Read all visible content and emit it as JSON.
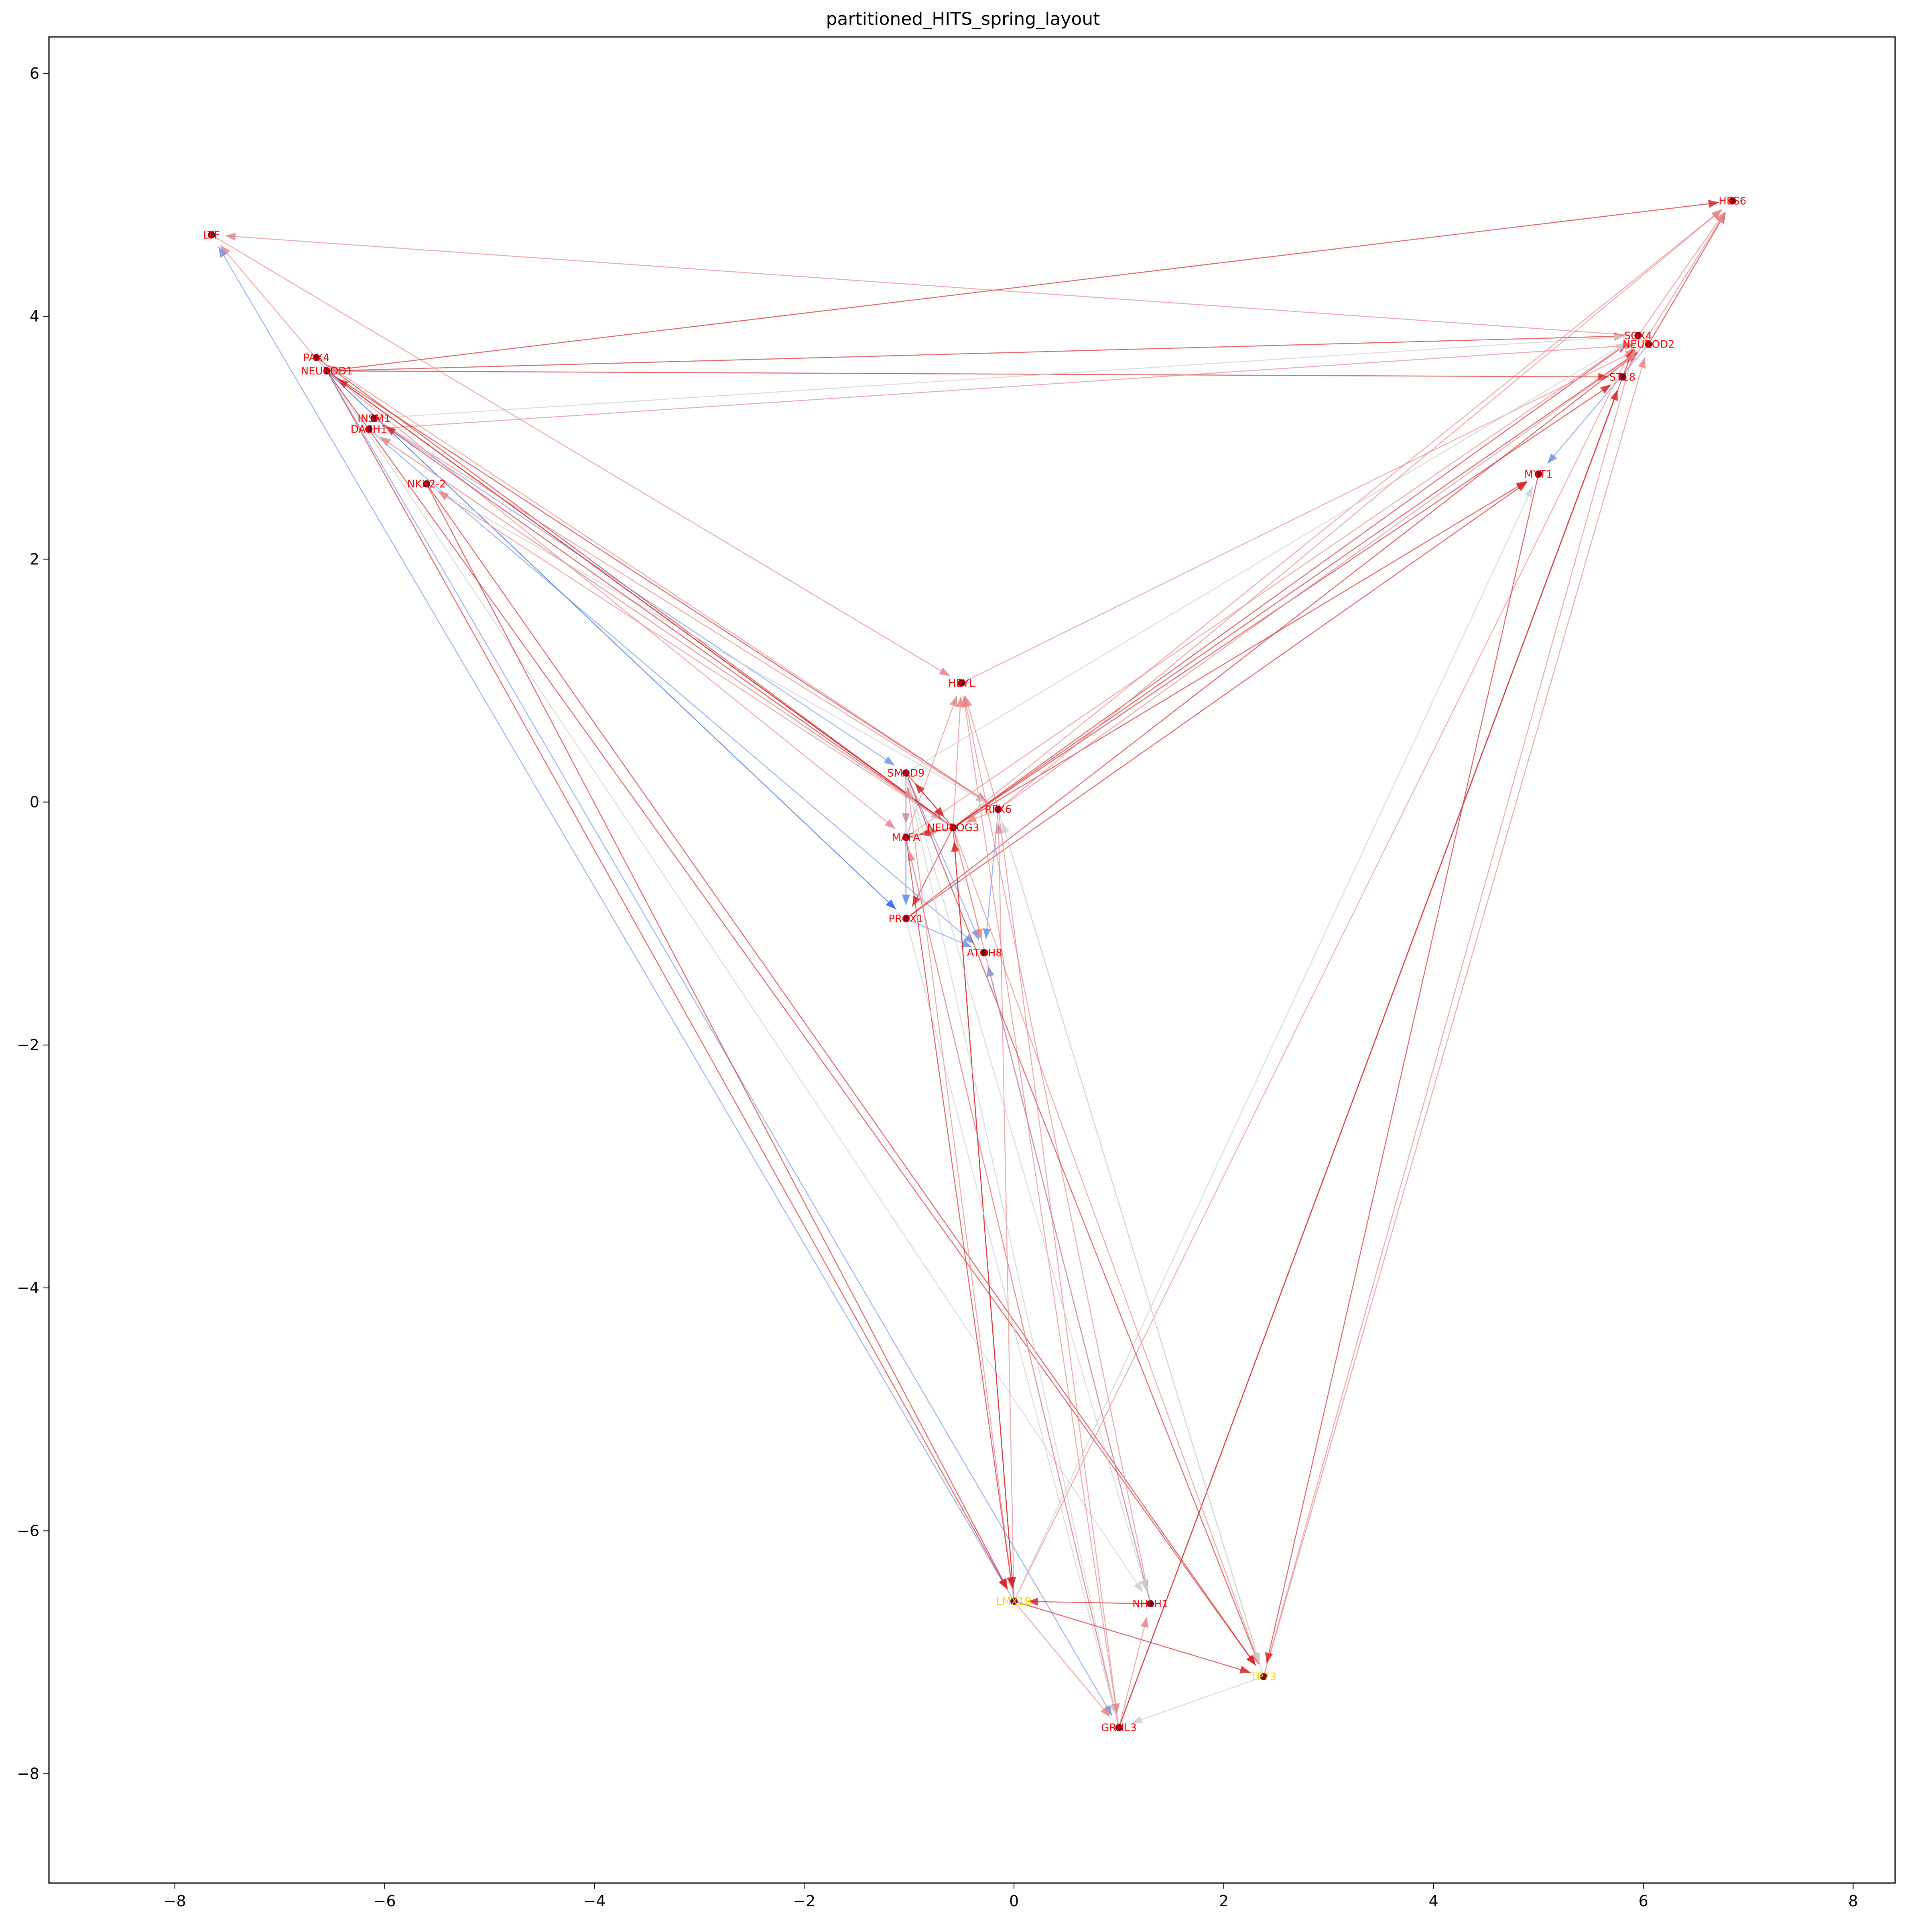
{
  "chart_data": {
    "type": "network",
    "title": "partitioned_HITS_spring_layout",
    "xlim": [
      -9.2,
      8.4
    ],
    "ylim": [
      -8.9,
      6.3
    ],
    "xticks": [
      -8,
      -6,
      -4,
      -2,
      0,
      2,
      4,
      6,
      8
    ],
    "yticks": [
      -8,
      -6,
      -4,
      -2,
      0,
      2,
      4,
      6
    ],
    "xtick_labels": [
      "−8",
      "−6",
      "−4",
      "−2",
      "0",
      "2",
      "4",
      "6",
      "8"
    ],
    "ytick_labels": [
      "−8",
      "−6",
      "−4",
      "−2",
      "0",
      "2",
      "4",
      "6"
    ],
    "grid": false,
    "colors": {
      "label": "#ff0000",
      "label_yellow": "#ffd700",
      "edge_red": "#d62728",
      "edge_pink": "#e8868a",
      "edge_grey": "#cfcfcf",
      "edge_blue": "#6f95e8",
      "edge_darkblue": "#2b66e0",
      "node_dark": "#7a0022"
    },
    "nodes": [
      {
        "id": "LTF",
        "x": -7.65,
        "y": 4.67,
        "label_color": "red"
      },
      {
        "id": "HES6",
        "x": 6.85,
        "y": 4.95,
        "label_color": "red"
      },
      {
        "id": "PAX4",
        "x": -6.65,
        "y": 3.66,
        "label_color": "red"
      },
      {
        "id": "NEUROD1",
        "x": -6.55,
        "y": 3.55,
        "label_color": "red"
      },
      {
        "id": "INSM1",
        "x": -6.1,
        "y": 3.16,
        "label_color": "red"
      },
      {
        "id": "DACH1",
        "x": -6.15,
        "y": 3.07,
        "label_color": "red"
      },
      {
        "id": "NKX2-2",
        "x": -5.6,
        "y": 2.62,
        "label_color": "red"
      },
      {
        "id": "SOX4",
        "x": 5.95,
        "y": 3.84,
        "label_color": "red"
      },
      {
        "id": "NEUROD2",
        "x": 6.05,
        "y": 3.77,
        "label_color": "red"
      },
      {
        "id": "ST18",
        "x": 5.8,
        "y": 3.5,
        "label_color": "red"
      },
      {
        "id": "MYT1",
        "x": 5.0,
        "y": 2.7,
        "label_color": "red"
      },
      {
        "id": "HEYL",
        "x": -0.5,
        "y": 0.98,
        "label_color": "red"
      },
      {
        "id": "SMAD9",
        "x": -1.03,
        "y": 0.24,
        "label_color": "red"
      },
      {
        "id": "RFX6",
        "x": -0.15,
        "y": -0.06,
        "label_color": "red"
      },
      {
        "id": "NEUROG3",
        "x": -0.58,
        "y": -0.21,
        "label_color": "red"
      },
      {
        "id": "MAFA",
        "x": -1.03,
        "y": -0.29,
        "label_color": "red"
      },
      {
        "id": "PROX1",
        "x": -1.03,
        "y": -0.96,
        "label_color": "red"
      },
      {
        "id": "ATOH8",
        "x": -0.28,
        "y": -1.24,
        "label_color": "red"
      },
      {
        "id": "LMX1B",
        "x": 0.0,
        "y": -6.58,
        "label_color": "yellow"
      },
      {
        "id": "NHLH1",
        "x": 1.3,
        "y": -6.6,
        "label_color": "red"
      },
      {
        "id": "TP73",
        "x": 2.38,
        "y": -7.2,
        "label_color": "yellow"
      },
      {
        "id": "GRHL3",
        "x": 1.0,
        "y": -7.62,
        "label_color": "red"
      }
    ],
    "edges": [
      {
        "source": "NEUROD1",
        "target": "HES6",
        "color": "red"
      },
      {
        "source": "NEUROD1",
        "target": "SOX4",
        "color": "red"
      },
      {
        "source": "NEUROD1",
        "target": "ST18",
        "color": "red"
      },
      {
        "source": "DACH1",
        "target": "NEUROD2",
        "color": "pink"
      },
      {
        "source": "INSM1",
        "target": "SOX4",
        "color": "grey"
      },
      {
        "source": "SOX4",
        "target": "LTF",
        "color": "pink"
      },
      {
        "source": "NEUROD1",
        "target": "LTF",
        "color": "pink"
      },
      {
        "source": "LMX1B",
        "target": "LTF",
        "color": "blue"
      },
      {
        "source": "NEUROD1",
        "target": "PROX1",
        "color": "darkblue"
      },
      {
        "source": "NEUROD1",
        "target": "RFX6",
        "color": "red"
      },
      {
        "source": "NEUROD1",
        "target": "NEUROG3",
        "color": "red"
      },
      {
        "source": "NEUROD1",
        "target": "MAFA",
        "color": "pink"
      },
      {
        "source": "PAX4",
        "target": "NEUROG3",
        "color": "red"
      },
      {
        "source": "INSM1",
        "target": "RFX6",
        "color": "pink"
      },
      {
        "source": "INSM1",
        "target": "SMAD9",
        "color": "blue"
      },
      {
        "source": "DACH1",
        "target": "ATOH8",
        "color": "blue"
      },
      {
        "source": "DACH1",
        "target": "NEUROG3",
        "color": "grey"
      },
      {
        "source": "NKX2-2",
        "target": "RFX6",
        "color": "grey"
      },
      {
        "source": "LTF",
        "target": "HEYL",
        "color": "pink"
      },
      {
        "source": "NEUROD1",
        "target": "NHLH1",
        "color": "grey"
      },
      {
        "source": "NEUROD1",
        "target": "TP73",
        "color": "red"
      },
      {
        "source": "NEUROD1",
        "target": "LMX1B",
        "color": "red"
      },
      {
        "source": "NEUROD1",
        "target": "GRHL3",
        "color": "blue"
      },
      {
        "source": "NKX2-2",
        "target": "TP73",
        "color": "red"
      },
      {
        "source": "NKX2-2",
        "target": "LMX1B",
        "color": "red"
      },
      {
        "source": "NEUROG3",
        "target": "NEUROD1",
        "color": "red"
      },
      {
        "source": "NEUROG3",
        "target": "INSM1",
        "color": "red"
      },
      {
        "source": "NEUROG3",
        "target": "NKX2-2",
        "color": "pink"
      },
      {
        "source": "NEUROG3",
        "target": "DACH1",
        "color": "pink"
      },
      {
        "source": "RFX6",
        "target": "PAX4",
        "color": "pink"
      },
      {
        "source": "NEUROG3",
        "target": "HES6",
        "color": "pink"
      },
      {
        "source": "NEUROG3",
        "target": "SOX4",
        "color": "red"
      },
      {
        "source": "NEUROG3",
        "target": "NEUROD2",
        "color": "red"
      },
      {
        "source": "NEUROG3",
        "target": "ST18",
        "color": "red"
      },
      {
        "source": "NEUROG3",
        "target": "MYT1",
        "color": "red"
      },
      {
        "source": "RFX6",
        "target": "NEUROD2",
        "color": "pink"
      },
      {
        "source": "RFX6",
        "target": "HES6",
        "color": "pink"
      },
      {
        "source": "PROX1",
        "target": "NEUROD2",
        "color": "red"
      },
      {
        "source": "PROX1",
        "target": "MYT1",
        "color": "red"
      },
      {
        "source": "MAFA",
        "target": "SOX4",
        "color": "pink"
      },
      {
        "source": "HEYL",
        "target": "NEUROD2",
        "color": "pink"
      },
      {
        "source": "SMAD9",
        "target": "SOX4",
        "color": "grey"
      },
      {
        "source": "NEUROD2",
        "target": "HES6",
        "color": "red"
      },
      {
        "source": "SOX4",
        "target": "HES6",
        "color": "pink"
      },
      {
        "source": "ST18",
        "target": "HES6",
        "color": "pink"
      },
      {
        "source": "NEUROD2",
        "target": "MYT1",
        "color": "blue"
      },
      {
        "source": "SOX4",
        "target": "ST18",
        "color": "pink"
      },
      {
        "source": "LMX1B",
        "target": "SOX4",
        "color": "pink"
      },
      {
        "source": "LMX1B",
        "target": "MYT1",
        "color": "grey"
      },
      {
        "source": "GRHL3",
        "target": "SOX4",
        "color": "red"
      },
      {
        "source": "GRHL3",
        "target": "ST18",
        "color": "red"
      },
      {
        "source": "TP73",
        "target": "NEUROD2",
        "color": "pink"
      },
      {
        "source": "TP73",
        "target": "SOX4",
        "color": "pink"
      },
      {
        "source": "MYT1",
        "target": "TP73",
        "color": "red"
      },
      {
        "source": "NEUROG3",
        "target": "HEYL",
        "color": "pink"
      },
      {
        "source": "RFX6",
        "target": "HEYL",
        "color": "pink"
      },
      {
        "source": "MAFA",
        "target": "HEYL",
        "color": "pink"
      },
      {
        "source": "SMAD9",
        "target": "NEUROG3",
        "color": "red"
      },
      {
        "source": "MAFA",
        "target": "NEUROG3",
        "color": "pink"
      },
      {
        "source": "RFX6",
        "target": "NEUROG3",
        "color": "pink"
      },
      {
        "source": "NEUROG3",
        "target": "SMAD9",
        "color": "red"
      },
      {
        "source": "NEUROG3",
        "target": "MAFA",
        "color": "red"
      },
      {
        "source": "SMAD9",
        "target": "MAFA",
        "color": "pink"
      },
      {
        "source": "SMAD9",
        "target": "PROX1",
        "color": "blue"
      },
      {
        "source": "MAFA",
        "target": "PROX1",
        "color": "blue"
      },
      {
        "source": "NEUROG3",
        "target": "PROX1",
        "color": "red"
      },
      {
        "source": "SMAD9",
        "target": "ATOH8",
        "color": "blue"
      },
      {
        "source": "NEUROG3",
        "target": "ATOH8",
        "color": "pink"
      },
      {
        "source": "RFX6",
        "target": "ATOH8",
        "color": "blue"
      },
      {
        "source": "PROX1",
        "target": "ATOH8",
        "color": "blue"
      },
      {
        "source": "LMX1B",
        "target": "NEUROG3",
        "color": "red"
      },
      {
        "source": "LMX1B",
        "target": "RFX6",
        "color": "pink"
      },
      {
        "source": "LMX1B",
        "target": "SMAD9",
        "color": "pink"
      },
      {
        "source": "NHLH1",
        "target": "HEYL",
        "color": "pink"
      },
      {
        "source": "NHLH1",
        "target": "ATOH8",
        "color": "blue"
      },
      {
        "source": "GRHL3",
        "target": "HEYL",
        "color": "pink"
      },
      {
        "source": "GRHL3",
        "target": "MAFA",
        "color": "pink"
      },
      {
        "source": "TP73",
        "target": "RFX6",
        "color": "grey"
      },
      {
        "source": "NEUROG3",
        "target": "LMX1B",
        "color": "red"
      },
      {
        "source": "MAFA",
        "target": "LMX1B",
        "color": "red"
      },
      {
        "source": "SMAD9",
        "target": "TP73",
        "color": "red"
      },
      {
        "source": "NEUROG3",
        "target": "TP73",
        "color": "pink"
      },
      {
        "source": "RFX6",
        "target": "TP73",
        "color": "grey"
      },
      {
        "source": "MAFA",
        "target": "GRHL3",
        "color": "pink"
      },
      {
        "source": "PROX1",
        "target": "GRHL3",
        "color": "grey"
      },
      {
        "source": "SMAD9",
        "target": "GRHL3",
        "color": "grey"
      },
      {
        "source": "RFX6",
        "target": "GRHL3",
        "color": "pink"
      },
      {
        "source": "NEUROG3",
        "target": "NHLH1",
        "color": "pink"
      },
      {
        "source": "SMAD9",
        "target": "NHLH1",
        "color": "grey"
      },
      {
        "source": "LMX1B",
        "target": "TP73",
        "color": "red"
      },
      {
        "source": "NHLH1",
        "target": "LMX1B",
        "color": "red"
      },
      {
        "source": "GRHL3",
        "target": "NHLH1",
        "color": "pink"
      },
      {
        "source": "TP73",
        "target": "GRHL3",
        "color": "grey"
      },
      {
        "source": "LMX1B",
        "target": "GRHL3",
        "color": "pink"
      }
    ]
  }
}
